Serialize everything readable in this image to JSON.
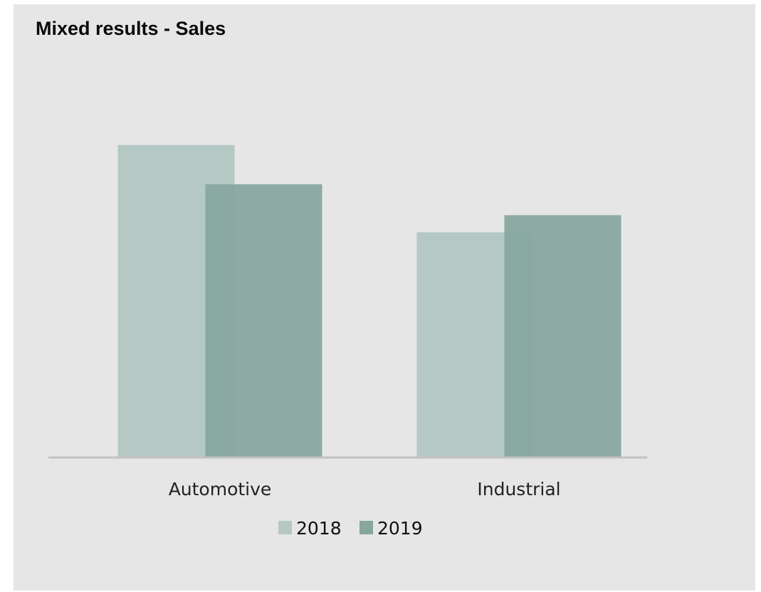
{
  "chart_data": {
    "type": "bar",
    "title": "Mixed results - Sales",
    "categories": [
      "Automotive",
      "Industrial"
    ],
    "series": [
      {
        "name": "2018",
        "values": [
          100,
          72
        ],
        "color": "#b5c8c3"
      },
      {
        "name": "2019",
        "values": [
          87.4,
          77.5
        ],
        "color": "#87a69d"
      }
    ],
    "ylim": [
      0,
      110
    ],
    "grid": false,
    "axis_line_color": "#c2c2c2",
    "legend_position": "bottom"
  }
}
